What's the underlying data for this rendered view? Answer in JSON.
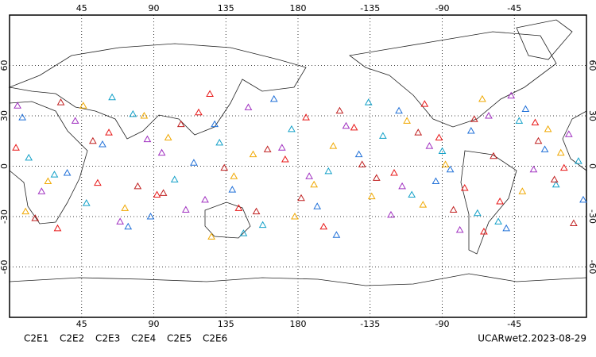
{
  "chart_data": {
    "type": "scatter",
    "title": "UCARwet2.2023-08-29",
    "xlim": [
      0,
      360
    ],
    "ylim": [
      -90,
      90
    ],
    "xticks": [
      45,
      90,
      135,
      180,
      {
        "value": 225,
        "label": "-135"
      },
      {
        "value": 270,
        "label": "-90"
      },
      {
        "value": 315,
        "label": "-45"
      }
    ],
    "yticks": [
      60,
      30,
      0,
      -30,
      -60
    ],
    "grid": true,
    "series": [
      {
        "name": "C2E1",
        "color": "#12a0c8",
        "x": [
          12,
          48,
          77,
          103,
          131,
          158,
          176,
          199,
          224,
          251,
          270,
          292,
          318,
          341,
          355,
          64,
          146,
          233,
          305,
          28
        ],
        "y": [
          5,
          -22,
          31,
          -8,
          14,
          -35,
          22,
          -3,
          38,
          -17,
          9,
          -28,
          27,
          -11,
          3,
          41,
          -40,
          18,
          -33,
          -5
        ]
      },
      {
        "name": "C2E2",
        "color": "#a030c0",
        "x": [
          20,
          41,
          69,
          95,
          122,
          149,
          187,
          210,
          238,
          262,
          281,
          299,
          327,
          349,
          5,
          110,
          170,
          245,
          313,
          86
        ],
        "y": [
          -15,
          27,
          -33,
          8,
          -20,
          35,
          -6,
          24,
          -29,
          12,
          -38,
          30,
          -2,
          19,
          36,
          -26,
          11,
          -12,
          42,
          16
        ]
      },
      {
        "name": "C2E3",
        "color": "#2070d8",
        "x": [
          8,
          36,
          58,
          88,
          115,
          139,
          165,
          192,
          218,
          243,
          266,
          288,
          310,
          334,
          358,
          74,
          128,
          204,
          275,
          322
        ],
        "y": [
          29,
          -4,
          13,
          -30,
          2,
          -14,
          40,
          -24,
          7,
          33,
          -9,
          21,
          -37,
          10,
          -20,
          -36,
          25,
          -41,
          -2,
          34
        ]
      },
      {
        "name": "C2E4",
        "color": "#c02020",
        "x": [
          16,
          52,
          80,
          107,
          134,
          161,
          182,
          206,
          229,
          255,
          277,
          302,
          330,
          352,
          32,
          96,
          154,
          220,
          290,
          340
        ],
        "y": [
          -31,
          15,
          -12,
          25,
          -1,
          10,
          -19,
          33,
          -7,
          20,
          -26,
          6,
          15,
          -34,
          38,
          -16,
          -27,
          1,
          28,
          -8
        ]
      },
      {
        "name": "C2E5",
        "color": "#e81818",
        "x": [
          4,
          30,
          62,
          92,
          118,
          143,
          172,
          196,
          215,
          240,
          259,
          284,
          306,
          328,
          346,
          55,
          125,
          185,
          268,
          296
        ],
        "y": [
          11,
          -37,
          20,
          -17,
          32,
          -25,
          4,
          -36,
          23,
          -4,
          37,
          -13,
          -21,
          26,
          -1,
          -10,
          43,
          29,
          17,
          -39
        ]
      },
      {
        "name": "C2E6",
        "color": "#f0a800",
        "x": [
          24,
          46,
          72,
          99,
          126,
          152,
          178,
          202,
          226,
          248,
          272,
          295,
          320,
          344,
          10,
          84,
          140,
          190,
          258,
          336
        ],
        "y": [
          -9,
          36,
          -25,
          17,
          -42,
          7,
          -30,
          12,
          -18,
          27,
          1,
          40,
          -15,
          8,
          -27,
          30,
          -6,
          -11,
          -23,
          22
        ]
      }
    ]
  }
}
